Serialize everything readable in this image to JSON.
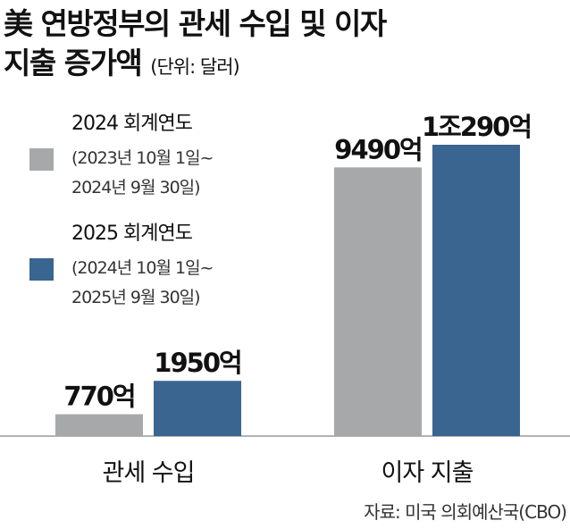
{
  "chart_data": {
    "type": "bar",
    "title": [
      "美 연방정부의 관세 수입 및 이자",
      "지출 증가액"
    ],
    "unit": "(단위: 달러)",
    "categories": [
      "관세 수입",
      "이자 지출"
    ],
    "series": [
      {
        "name": "2024 회계연도",
        "period": [
          "(2023년 10월 1일~",
          "2024년 9월 30일)"
        ],
        "color": "#a7a8aa",
        "values": [
          770,
          9490
        ],
        "value_labels": [
          "770억",
          "9490억"
        ]
      },
      {
        "name": "2025 회계연도",
        "period": [
          "(2024년 10월 1일~",
          "2025년 9월 30일)"
        ],
        "color": "#3a6591",
        "values": [
          1950,
          10290
        ],
        "value_labels": [
          "1950억",
          "1조290억"
        ]
      }
    ],
    "source": "자료: 미국 의회예산국(CBO)"
  }
}
